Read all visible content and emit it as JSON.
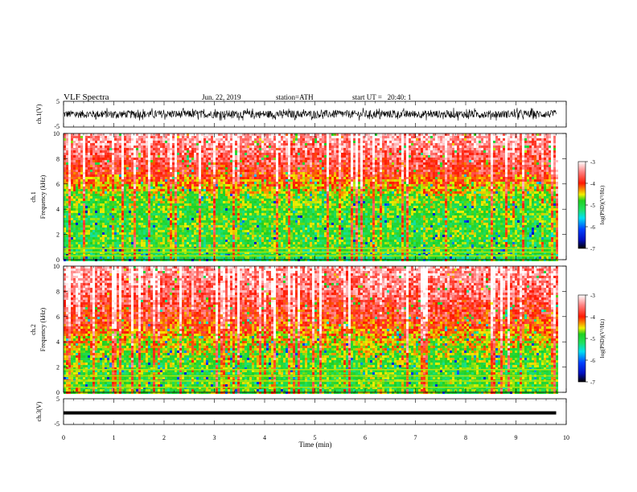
{
  "header": {
    "title": "VLF Spectra",
    "date": "Jun. 22, 2019",
    "station": "station=ATH",
    "start": "start UT =   20:40: 1"
  },
  "colors": {
    "spectrum_stops": [
      "#000000",
      "#0018ff",
      "#00d8ff",
      "#18e878",
      "#18d818",
      "#f0f000",
      "#ff2000",
      "#ff8888",
      "#ffffff"
    ]
  },
  "chart_data": [
    {
      "type": "line",
      "id": "ch1-waveform",
      "ylabel": "ch.1(V)",
      "ylim": [
        -5,
        5
      ],
      "ytick_labels": [
        "5",
        "-5"
      ],
      "xlim": [
        0,
        10
      ],
      "description_values": {
        "amplitude_range_V": [
          -2.5,
          2.5
        ],
        "center_V": 0
      }
    },
    {
      "type": "heatmap",
      "id": "ch1-spectrogram",
      "ylabel_line1": "ch.1",
      "ylabel_line2": "Frequency (kHz)",
      "ylim": [
        0,
        10
      ],
      "ytick_labels": [
        "0",
        "2",
        "4",
        "6",
        "8",
        "10"
      ],
      "xlim": [
        0,
        10
      ],
      "data_extent_min": [
        0,
        9.8
      ],
      "colorbar": {
        "label": "log(PSD)(V²/Hz)",
        "range": [
          -7,
          -3
        ],
        "tick_labels": [
          "-3",
          "-4",
          "-5",
          "-6",
          "-7"
        ]
      },
      "profile_log_psd_by_kHz": [
        [
          0,
          -5.2
        ],
        [
          1,
          -5.0
        ],
        [
          2,
          -5.0
        ],
        [
          3,
          -5.0
        ],
        [
          4,
          -5.0
        ],
        [
          5,
          -4.8
        ],
        [
          6,
          -4.4
        ],
        [
          7,
          -4.0
        ],
        [
          8,
          -3.8
        ],
        [
          10,
          -3.4
        ]
      ],
      "narrowband_lines_kHz": [
        0.3,
        0.6,
        0.9
      ]
    },
    {
      "type": "heatmap",
      "id": "ch2-spectrogram",
      "ylabel_line1": "ch.2",
      "ylabel_line2": "Frequency (kHz)",
      "ylim": [
        0,
        10
      ],
      "ytick_labels": [
        "0",
        "2",
        "4",
        "6",
        "8",
        "10"
      ],
      "xlim": [
        0,
        10
      ],
      "data_extent_min": [
        0,
        9.8
      ],
      "colorbar": {
        "label": "log(PSD)(V²/Hz)",
        "range": [
          -7,
          -3
        ],
        "tick_labels": [
          "-3",
          "-4",
          "-5",
          "-6",
          "-7"
        ]
      },
      "profile_log_psd_by_kHz": [
        [
          0,
          -5.0
        ],
        [
          1,
          -5.0
        ],
        [
          2,
          -5.0
        ],
        [
          3,
          -4.8
        ],
        [
          4,
          -4.6
        ],
        [
          5,
          -4.3
        ],
        [
          6,
          -4.0
        ],
        [
          7,
          -3.9
        ],
        [
          8,
          -3.7
        ],
        [
          10,
          -3.5
        ]
      ],
      "narrowband_lines_kHz": [
        0.4,
        0.9,
        1.3,
        1.8
      ]
    },
    {
      "type": "line",
      "id": "ch3-waveform",
      "ylabel": "ch.3(V)",
      "ylim": [
        -5,
        5
      ],
      "ytick_labels": [
        "5",
        "-5"
      ],
      "xlim": [
        0,
        10
      ],
      "description_values": {
        "constant_V": -0.5
      }
    }
  ],
  "xaxis": {
    "label": "Time (min)",
    "tick_labels": [
      "0",
      "1",
      "2",
      "3",
      "4",
      "5",
      "6",
      "7",
      "8",
      "9",
      "10"
    ]
  }
}
